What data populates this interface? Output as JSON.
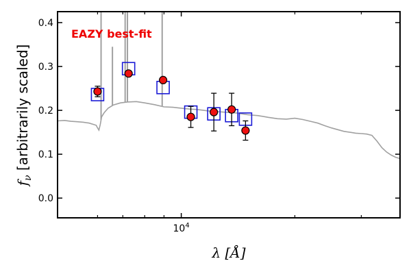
{
  "chart_data": {
    "type": "line",
    "title": "",
    "annotation": "EAZY best-fit",
    "xlabel": "λ [Å]",
    "ylabel": "f_ν [arbitrarily scaled]",
    "ylabel_symbol": "f",
    "ylabel_sub": "ν",
    "ylabel_rest": " [arbitrarily scaled]",
    "xlabel_symbol": "λ",
    "xlabel_rest": " [Å]",
    "x_scale": "log",
    "xlim": [
      4700,
      38000
    ],
    "ylim": [
      -0.045,
      0.425
    ],
    "yticks": [
      0.0,
      0.1,
      0.2,
      0.3,
      0.4
    ],
    "ytick_labels": [
      "0.0",
      "0.1",
      "0.2",
      "0.3",
      "0.4"
    ],
    "xticks_major": [
      10000
    ],
    "xtick_major_label_base": "10",
    "xtick_major_label_exp": "4",
    "xticks_minor": [
      6000,
      7000,
      8000,
      9000,
      20000,
      30000
    ],
    "grid": false,
    "colors": {
      "model": "#a0a0a0",
      "observed_fill": "#ee1111",
      "observed_edge": "#000000",
      "model_phot": "#1a1ad6",
      "annotation": "#ee0000"
    },
    "series": [
      {
        "kind": "model_sed",
        "points": [
          [
            4700,
            0.176
          ],
          [
            4900,
            0.177
          ],
          [
            5100,
            0.175
          ],
          [
            5300,
            0.174
          ],
          [
            5500,
            0.173
          ],
          [
            5700,
            0.171
          ],
          [
            5850,
            0.168
          ],
          [
            5950,
            0.166
          ],
          [
            6000,
            0.16
          ],
          [
            6050,
            0.155
          ],
          [
            6100,
            0.168
          ],
          [
            6150,
            0.185
          ],
          [
            6250,
            0.195
          ],
          [
            6400,
            0.205
          ],
          [
            6600,
            0.212
          ],
          [
            6900,
            0.217
          ],
          [
            7200,
            0.219
          ],
          [
            7600,
            0.22
          ],
          [
            8000,
            0.217
          ],
          [
            8500,
            0.213
          ],
          [
            9000,
            0.208
          ],
          [
            9500,
            0.207
          ],
          [
            10000,
            0.205
          ],
          [
            10500,
            0.203
          ],
          [
            11000,
            0.202
          ],
          [
            12000,
            0.198
          ],
          [
            13000,
            0.196
          ],
          [
            14000,
            0.194
          ],
          [
            15000,
            0.19
          ],
          [
            16000,
            0.188
          ],
          [
            17000,
            0.184
          ],
          [
            18000,
            0.181
          ],
          [
            19000,
            0.18
          ],
          [
            20000,
            0.182
          ],
          [
            21000,
            0.179
          ],
          [
            22000,
            0.175
          ],
          [
            23000,
            0.171
          ],
          [
            24000,
            0.165
          ],
          [
            25000,
            0.16
          ],
          [
            26000,
            0.156
          ],
          [
            27000,
            0.152
          ],
          [
            28000,
            0.15
          ],
          [
            29000,
            0.148
          ],
          [
            30000,
            0.147
          ],
          [
            31000,
            0.146
          ],
          [
            32000,
            0.143
          ],
          [
            33000,
            0.13
          ],
          [
            34000,
            0.115
          ],
          [
            35000,
            0.105
          ],
          [
            36000,
            0.098
          ],
          [
            37000,
            0.093
          ],
          [
            38000,
            0.09
          ]
        ],
        "emission_lines": [
          {
            "x": 6130,
            "ytop": 0.425
          },
          {
            "x": 6570,
            "ytop": 0.345
          },
          {
            "x": 7100,
            "ytop": 0.425
          },
          {
            "x": 7200,
            "ytop": 0.425
          },
          {
            "x": 8900,
            "ytop": 0.425
          }
        ]
      },
      {
        "kind": "model_photometry",
        "marker": "open-square",
        "points": [
          [
            6000,
            0.236
          ],
          [
            7250,
            0.295
          ],
          [
            8950,
            0.252
          ],
          [
            10600,
            0.196
          ],
          [
            12200,
            0.192
          ],
          [
            13600,
            0.188
          ],
          [
            14800,
            0.18
          ]
        ]
      },
      {
        "kind": "observed_photometry",
        "marker": "filled-circle",
        "points": [
          {
            "x": 6000,
            "y": 0.243,
            "err": 0.012
          },
          {
            "x": 7250,
            "y": 0.284,
            "err": 0.0
          },
          {
            "x": 8950,
            "y": 0.269,
            "err": 0.0
          },
          {
            "x": 10600,
            "y": 0.185,
            "err": 0.024
          },
          {
            "x": 12200,
            "y": 0.196,
            "err": 0.043
          },
          {
            "x": 13600,
            "y": 0.202,
            "err": 0.037
          },
          {
            "x": 14800,
            "y": 0.154,
            "err": 0.022
          }
        ]
      }
    ]
  }
}
